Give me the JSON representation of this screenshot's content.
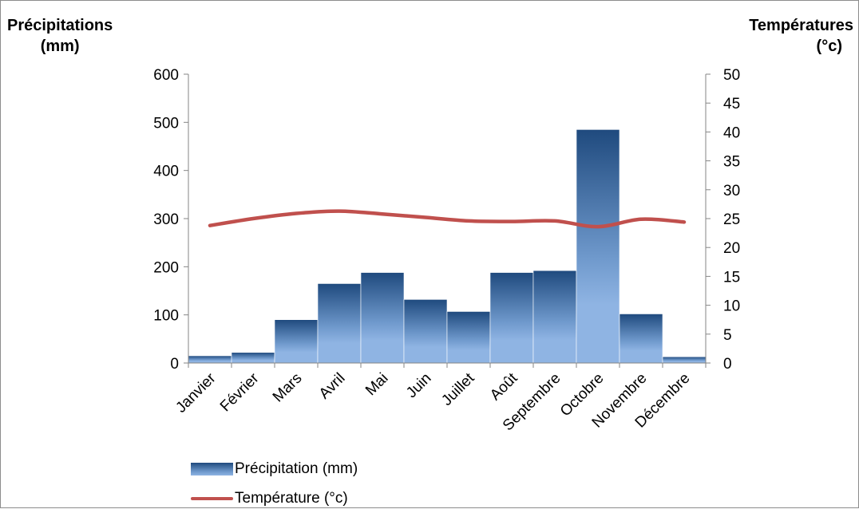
{
  "chart_data": {
    "type": "bar",
    "categories": [
      "Janvier",
      "Février",
      "Mars",
      "Avril",
      "Mai",
      "Juin",
      "Juillet",
      "Août",
      "Septembre",
      "Octobre",
      "Novembre",
      "Décembre"
    ],
    "series": [
      {
        "name": "Précipitation (mm)",
        "type": "bar",
        "axis": "left",
        "values": [
          15,
          22,
          90,
          165,
          188,
          132,
          107,
          188,
          192,
          485,
          102,
          13
        ]
      },
      {
        "name": "Température (°c)",
        "type": "line",
        "axis": "right",
        "values": [
          23.8,
          25.0,
          25.9,
          26.3,
          25.8,
          25.2,
          24.6,
          24.5,
          24.6,
          23.6,
          24.9,
          24.4
        ]
      }
    ],
    "ylabel_left_line1": "Précipitations",
    "ylabel_left_line2": "(mm)",
    "ylabel_right_line1": "Températures",
    "ylabel_right_line2": "(°c)",
    "ylim_left": [
      0,
      600
    ],
    "yticks_left": [
      0,
      100,
      200,
      300,
      400,
      500,
      600
    ],
    "ylim_right": [
      0,
      50
    ],
    "yticks_right": [
      0,
      5,
      10,
      15,
      20,
      25,
      30,
      35,
      40,
      45,
      50
    ],
    "legend": [
      "Précipitation (mm)",
      "Température (°c)"
    ],
    "legend_position": "bottom-left",
    "grid": false,
    "colors": {
      "bar_dark": "#1f4a7e",
      "bar_light": "#8fb4e3",
      "line": "#c0504d"
    }
  }
}
